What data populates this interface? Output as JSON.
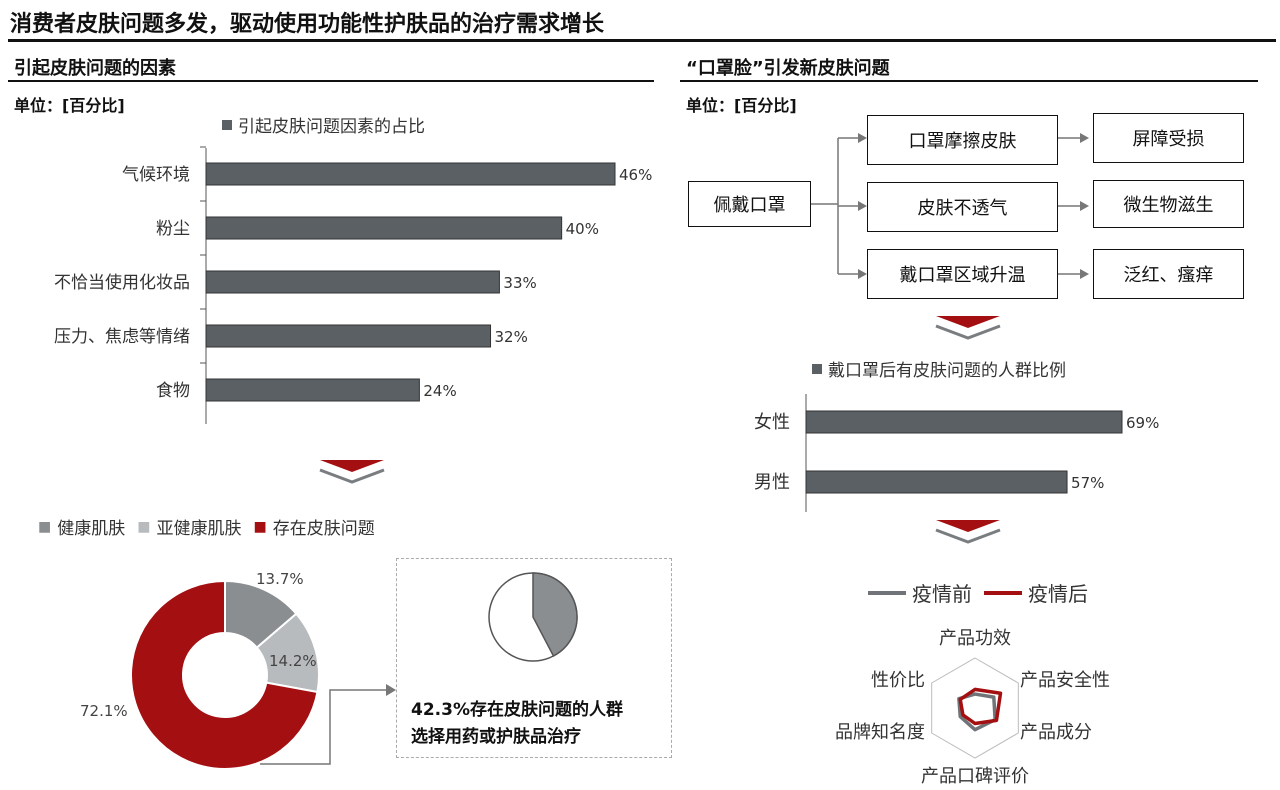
{
  "header": {
    "title": "消费者皮肤问题多发，驱动使用功能性护肤品的治疗需求增长"
  },
  "left": {
    "section_title": "引起皮肤问题的因素",
    "unit": "单位：[百分比]"
  },
  "right": {
    "section_title": "“口罩脸”引发新皮肤问题",
    "unit": "单位：[百分比]"
  },
  "flow": {
    "source": "佩戴口罩",
    "causes": [
      "口罩摩擦皮肤",
      "皮肤不透气",
      "戴口罩区域升温"
    ],
    "effects": [
      "屏障受损",
      "微生物滋生",
      "泛红、瘙痒"
    ]
  },
  "callout": {
    "line1": "42.3%存在皮肤问题的人群",
    "line2": "选择用药或护肤品治疗",
    "pie_fraction": 0.423
  },
  "colors": {
    "bar": "#5b6064",
    "accent": "#a40f12",
    "gray_light": "#b8bbbd",
    "gray_mid": "#8a8e91",
    "line_gray": "#707478"
  },
  "chart_data": [
    {
      "type": "bar",
      "orientation": "horizontal",
      "legend": "引起皮肤问题因素的占比",
      "categories": [
        "气候环境",
        "粉尘",
        "不恰当使用化妆品",
        "压力、焦虑等情绪",
        "食物"
      ],
      "values": [
        46,
        40,
        33,
        32,
        24
      ],
      "value_labels": [
        "46%",
        "40%",
        "33%",
        "32%",
        "24%"
      ],
      "xlim": [
        0,
        46
      ]
    },
    {
      "type": "pie",
      "variant": "donut",
      "legend": [
        "健康肌肤",
        "亚健康肌肤",
        "存在皮肤问题"
      ],
      "values": [
        13.7,
        14.2,
        72.1
      ],
      "value_labels": [
        "13.7%",
        "14.2%",
        "72.1%"
      ],
      "colors": [
        "#8a8e91",
        "#b8bbbd",
        "#a40f12"
      ]
    },
    {
      "type": "bar",
      "orientation": "horizontal",
      "legend": "戴口罩后有皮肤问题的人群比例",
      "categories": [
        "女性",
        "男性"
      ],
      "values": [
        69,
        57
      ],
      "value_labels": [
        "69%",
        "57%"
      ],
      "xlim": [
        0,
        69
      ]
    },
    {
      "type": "radar",
      "legend": [
        "疫情前",
        "疫情后"
      ],
      "axes": [
        "产品功效",
        "产品安全性",
        "产品成分",
        "产品口碑评价",
        "品牌知名度",
        "性价比"
      ],
      "series": [
        {
          "name": "疫情前",
          "values": [
            0.45,
            0.7,
            0.75,
            0.7,
            0.55,
            0.6
          ],
          "color": "#707478"
        },
        {
          "name": "疫情后",
          "values": [
            0.6,
            0.95,
            0.8,
            0.5,
            0.45,
            0.55
          ],
          "color": "#a40f12"
        }
      ]
    }
  ]
}
